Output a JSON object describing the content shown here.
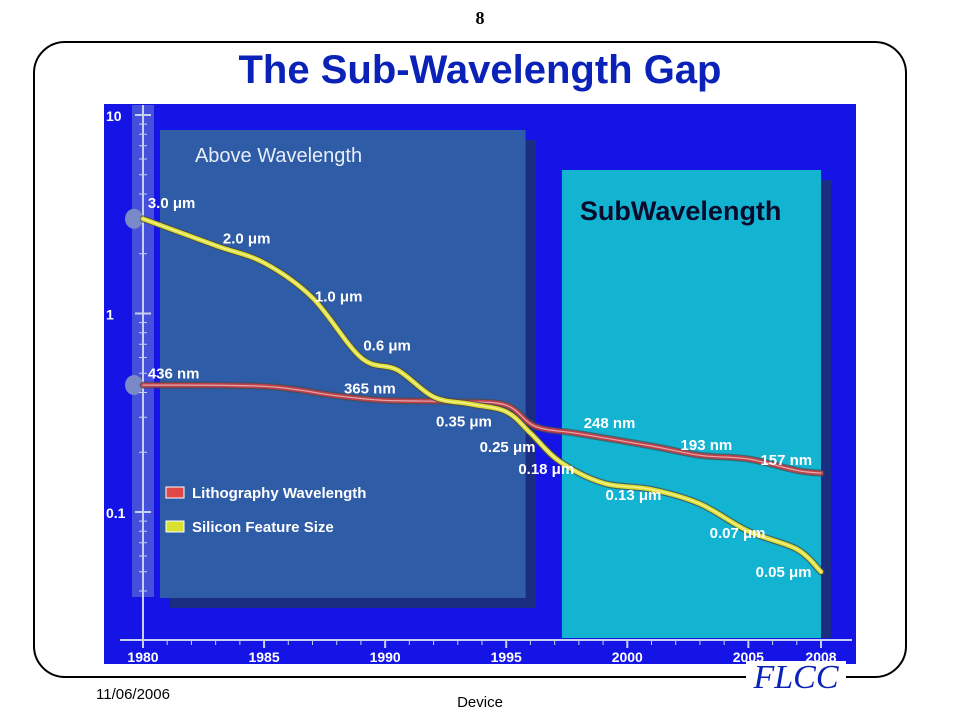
{
  "page_number": "8",
  "title": "The Sub-Wavelength Gap",
  "footer": {
    "date": "11/06/2006",
    "center": "Device",
    "logo": "FLCC"
  },
  "colors": {
    "background_blue": "#1414e6",
    "above_region": "#2f5ca6",
    "sub_region": "#12b4d2",
    "litho_line": "#c0404a",
    "silicon_line": "#e0e030",
    "title_blue": "#0a22b8"
  },
  "chart_data": {
    "type": "line",
    "x_ticks": [
      1980,
      1985,
      1990,
      1995,
      2000,
      2005,
      2008
    ],
    "xlim": [
      1980,
      2008
    ],
    "y_scale": "log",
    "ylim": [
      0.04,
      10
    ],
    "y_ticks": [
      {
        "value": 10,
        "label": "10"
      },
      {
        "value": 1,
        "label": "1"
      },
      {
        "value": 0.1,
        "label": "0.1"
      }
    ],
    "regions": [
      {
        "label": "Above Wavelength",
        "x0": 1980.7,
        "x1": 1995.8
      },
      {
        "label": "SubWavelength",
        "x0": 1997.3,
        "x1": 2008
      }
    ],
    "series": [
      {
        "name": "Lithography Wavelength",
        "color": "#c0404a",
        "points": [
          [
            1980,
            0.436
          ],
          [
            1985,
            0.43
          ],
          [
            1988,
            0.385
          ],
          [
            1990,
            0.365
          ],
          [
            1993,
            0.36
          ],
          [
            1995,
            0.345
          ],
          [
            1996.2,
            0.27
          ],
          [
            1998,
            0.248
          ],
          [
            2001,
            0.215
          ],
          [
            2003,
            0.193
          ],
          [
            2005,
            0.185
          ],
          [
            2007,
            0.162
          ],
          [
            2008,
            0.157
          ]
        ],
        "labels": [
          {
            "text": "436 nm",
            "x": 1980.2,
            "y": 0.47
          },
          {
            "text": "365 nm",
            "x": 1988.3,
            "y": 0.395
          },
          {
            "text": "248 nm",
            "x": 1998.2,
            "y": 0.265
          },
          {
            "text": "193 nm",
            "x": 2002.2,
            "y": 0.205
          },
          {
            "text": "157 nm",
            "x": 2005.5,
            "y": 0.172
          }
        ]
      },
      {
        "name": "Silicon Feature Size",
        "color": "#e0e030",
        "points": [
          [
            1980,
            3.0
          ],
          [
            1983,
            2.2
          ],
          [
            1985,
            1.8
          ],
          [
            1987,
            1.2
          ],
          [
            1989,
            0.6
          ],
          [
            1990.5,
            0.52
          ],
          [
            1992,
            0.38
          ],
          [
            1993.5,
            0.35
          ],
          [
            1995,
            0.32
          ],
          [
            1996,
            0.25
          ],
          [
            1997.2,
            0.18
          ],
          [
            1999,
            0.14
          ],
          [
            2001,
            0.13
          ],
          [
            2003,
            0.11
          ],
          [
            2005,
            0.08
          ],
          [
            2007,
            0.065
          ],
          [
            2008,
            0.05
          ]
        ],
        "labels": [
          {
            "text": "3.0 μm",
            "x": 1980.2,
            "y": 3.4
          },
          {
            "text": "2.0 μm",
            "x": 1983.3,
            "y": 2.25
          },
          {
            "text": "1.0 μm",
            "x": 1987.1,
            "y": 1.15
          },
          {
            "text": "0.6 μm",
            "x": 1989.1,
            "y": 0.65
          },
          {
            "text": "0.35 μm",
            "x": 1992.1,
            "y": 0.27
          },
          {
            "text": "0.25 μm",
            "x": 1993.9,
            "y": 0.2
          },
          {
            "text": "0.18 μm",
            "x": 1995.5,
            "y": 0.155
          },
          {
            "text": "0.13 μm",
            "x": 1999.1,
            "y": 0.115
          },
          {
            "text": "0.07 μm",
            "x": 2003.4,
            "y": 0.074
          },
          {
            "text": "0.05 μm",
            "x": 2005.3,
            "y": 0.047
          }
        ]
      }
    ],
    "legend": [
      {
        "label": "Lithography Wavelength",
        "color": "#e04848"
      },
      {
        "label": "Silicon Feature Size",
        "color": "#d8e030"
      }
    ],
    "legend_position": "bottom-left"
  }
}
